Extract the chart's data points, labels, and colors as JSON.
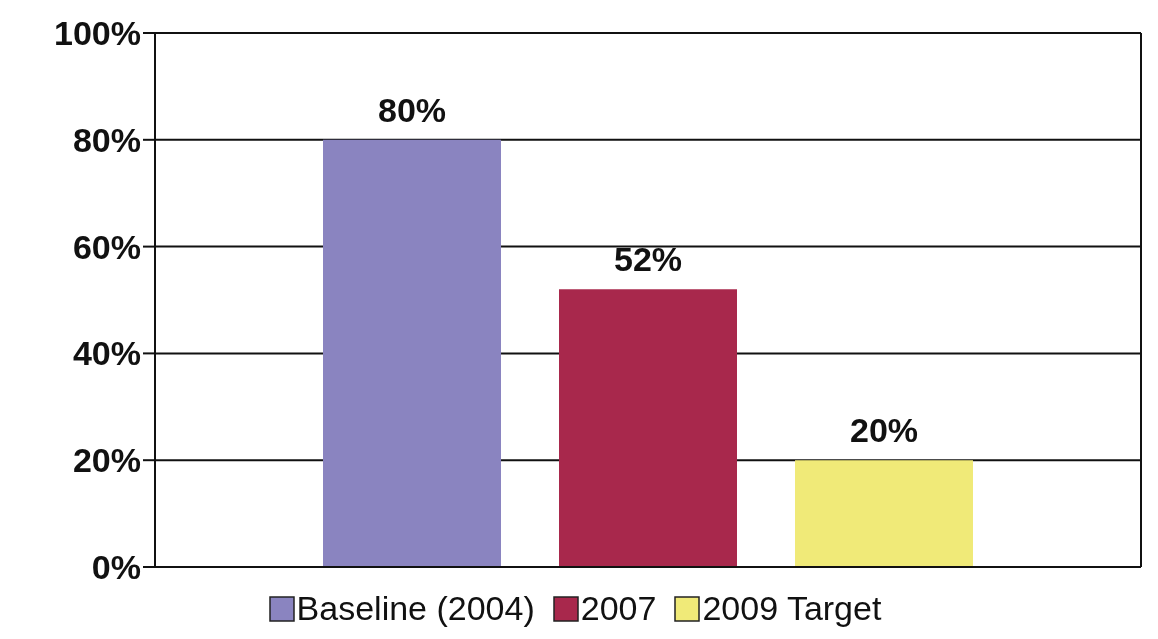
{
  "chart_data": {
    "type": "bar",
    "categories": [
      null
    ],
    "series": [
      {
        "name": "Baseline (2004)",
        "color": "#8a84c0",
        "values": [
          80
        ],
        "value_labels": [
          "80%"
        ]
      },
      {
        "name": "2007",
        "color": "#a8284c",
        "values": [
          52
        ],
        "value_labels": [
          "52%"
        ]
      },
      {
        "name": "2009 Target",
        "color": "#f0ea78",
        "values": [
          20
        ],
        "value_labels": [
          "20%"
        ]
      }
    ],
    "ylim": [
      0,
      100
    ],
    "yticks": [
      {
        "value": 0,
        "label": "0%"
      },
      {
        "value": 20,
        "label": "20%"
      },
      {
        "value": 40,
        "label": "40%"
      },
      {
        "value": 60,
        "label": "60%"
      },
      {
        "value": 80,
        "label": "80%"
      },
      {
        "value": 100,
        "label": "100%"
      }
    ],
    "grid": "y",
    "legend": "bottom",
    "tick_labels": "y"
  }
}
